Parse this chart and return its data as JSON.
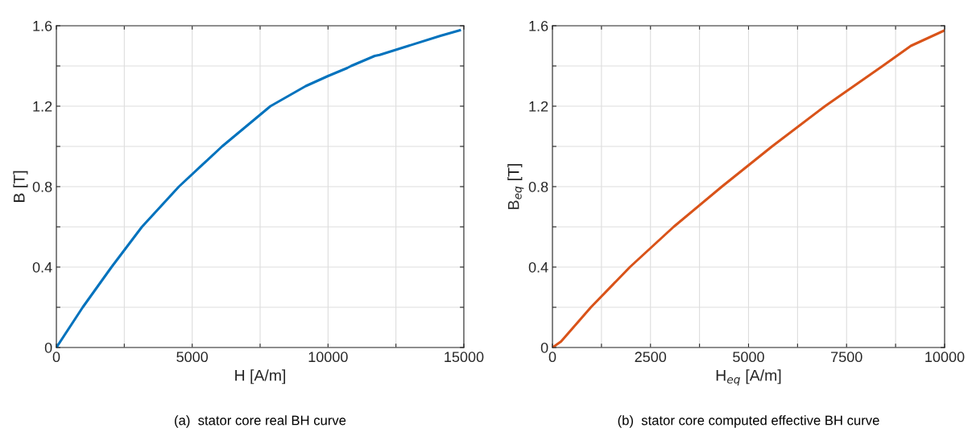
{
  "chart_data": [
    {
      "type": "line",
      "xlabel": "H [A/m]",
      "ylabel": "B [T]",
      "annotations": [
        "(a)  stator core real BH curve"
      ],
      "grid": true,
      "xlim": [
        0,
        15000
      ],
      "ylim": [
        0,
        1.6
      ],
      "xticks": [
        0,
        {
          "value": 2500,
          "label": null
        },
        5000,
        {
          "value": 7500,
          "label": null
        },
        10000,
        {
          "value": 12500,
          "label": null
        },
        15000
      ],
      "yticks": [
        0,
        {
          "value": 0.2,
          "label": null
        },
        0.4,
        {
          "value": 0.6,
          "label": null
        },
        0.8,
        {
          "value": 1.0,
          "label": null
        },
        1.2,
        {
          "value": 1.4,
          "label": null
        },
        1.6
      ],
      "series": [
        {
          "color": "#0072bd",
          "x": [
            0,
            970,
            2030,
            3150,
            4510,
            6100,
            7880,
            9180,
            10000,
            10710,
            10850,
            11720,
            11900,
            12960,
            14140,
            14850
          ],
          "values": [
            0,
            0.2,
            0.4,
            0.6,
            0.8,
            1.0,
            1.2,
            1.3,
            1.35,
            1.39,
            1.4,
            1.45,
            1.455,
            1.5,
            1.55,
            1.577
          ]
        }
      ]
    },
    {
      "type": "line",
      "xlabel": "H$_{eq}$ [A/m]",
      "ylabel": "B$_{eq}$ [T]",
      "annotations": [
        "(b)  stator core computed effective BH curve"
      ],
      "grid": true,
      "xlim": [
        0,
        10000
      ],
      "ylim": [
        0,
        1.6
      ],
      "xticks": [
        0,
        {
          "value": 1250,
          "label": null
        },
        2500,
        {
          "value": 3750,
          "label": null
        },
        5000,
        {
          "value": 6250,
          "label": null
        },
        7500,
        {
          "value": 8750,
          "label": null
        },
        10000
      ],
      "yticks": [
        0,
        {
          "value": 0.2,
          "label": null
        },
        0.4,
        {
          "value": 0.6,
          "label": null
        },
        0.8,
        {
          "value": 1.0,
          "label": null
        },
        1.2,
        {
          "value": 1.4,
          "label": null
        },
        1.6
      ],
      "series": [
        {
          "color": "#d95319",
          "x": [
            0,
            220,
            980,
            1975,
            3090,
            4320,
            5600,
            6950,
            8420,
            9140,
            10000
          ],
          "values": [
            0,
            0.03,
            0.2,
            0.4,
            0.6,
            0.8,
            1.0,
            1.2,
            1.4,
            1.5,
            1.577
          ]
        }
      ]
    }
  ]
}
